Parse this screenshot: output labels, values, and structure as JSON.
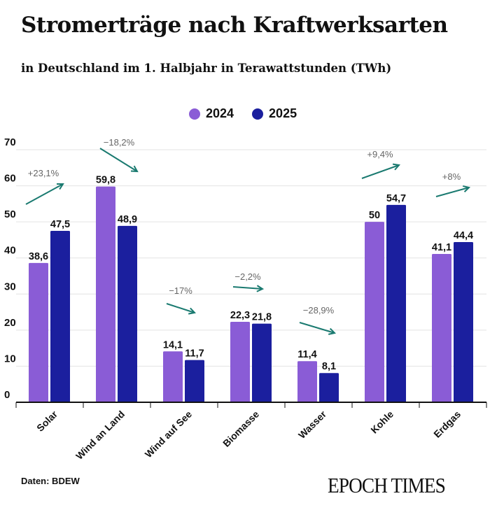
{
  "title": "Stromerträge nach Kraftwerksarten",
  "subtitle": "in Deutschland im 1. Halbjahr in Terawattstunden (TWh)",
  "source": "Daten: BDEW",
  "logo": "EPOCH TIMES",
  "chart_data": {
    "type": "bar",
    "categories": [
      "Solar",
      "Wind an Land",
      "Wind auf See",
      "Biomasse",
      "Wasser",
      "Kohle",
      "Erdgas"
    ],
    "series": [
      {
        "name": "2024",
        "color": "#8a5cd6",
        "values": [
          38.6,
          59.8,
          14.1,
          22.3,
          11.4,
          50,
          41.1
        ],
        "labels": [
          "38,6",
          "59,8",
          "14,1",
          "22,3",
          "11,4",
          "50",
          "41,1"
        ]
      },
      {
        "name": "2025",
        "color": "#1b1f9e",
        "values": [
          47.5,
          48.9,
          11.7,
          21.8,
          8.1,
          54.7,
          44.4
        ],
        "labels": [
          "47,5",
          "48,9",
          "11,7",
          "21,8",
          "8,1",
          "54,7",
          "44,4"
        ]
      }
    ],
    "changes": [
      "+23,1%",
      "−18,2%",
      "−17%",
      "−2,2%",
      "−28,9%",
      "+9,4%",
      "+8%"
    ],
    "change_color": "#1a7a70",
    "ylim": [
      0,
      70
    ],
    "yticks": [
      0,
      10,
      20,
      30,
      40,
      50,
      60,
      70
    ],
    "grid": true,
    "legend": "top-center"
  }
}
